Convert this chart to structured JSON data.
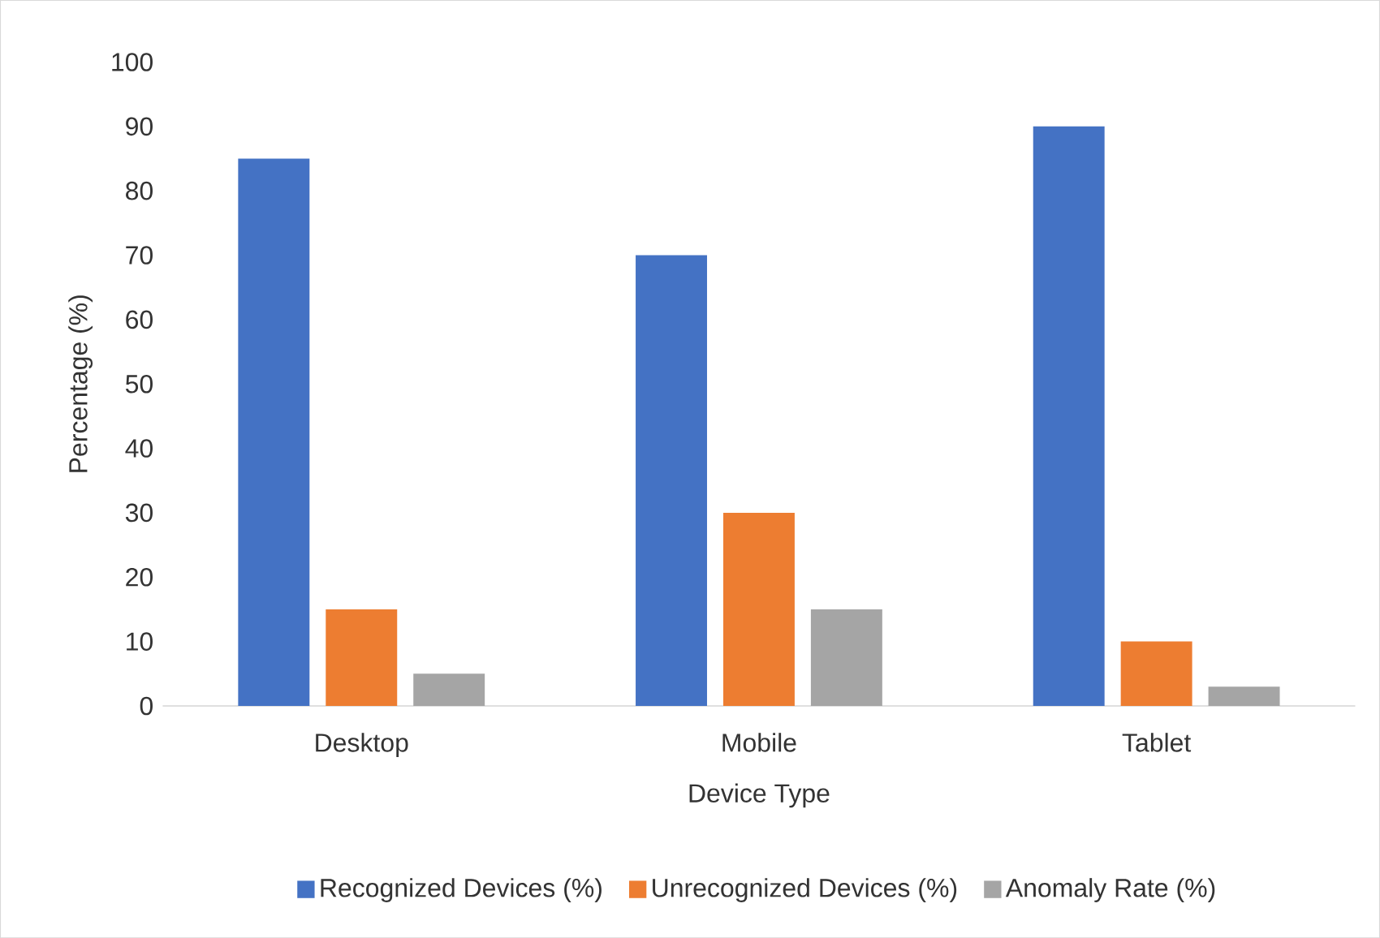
{
  "chart_data": {
    "type": "bar",
    "xlabel": "Device Type",
    "ylabel": "Percentage (%)",
    "categories": [
      "Desktop",
      "Mobile",
      "Tablet"
    ],
    "series": [
      {
        "name": "Recognized Devices (%)",
        "color": "#4472c4",
        "values": [
          85,
          70,
          90
        ]
      },
      {
        "name": "Unrecognized Devices (%)",
        "color": "#ed7d31",
        "values": [
          15,
          30,
          10
        ]
      },
      {
        "name": "Anomaly Rate (%)",
        "color": "#a5a5a5",
        "values": [
          5,
          15,
          3
        ]
      }
    ],
    "ylim": [
      0,
      100
    ],
    "yticks": [
      0,
      10,
      20,
      30,
      40,
      50,
      60,
      70,
      80,
      90,
      100
    ],
    "legend": "bottom"
  }
}
